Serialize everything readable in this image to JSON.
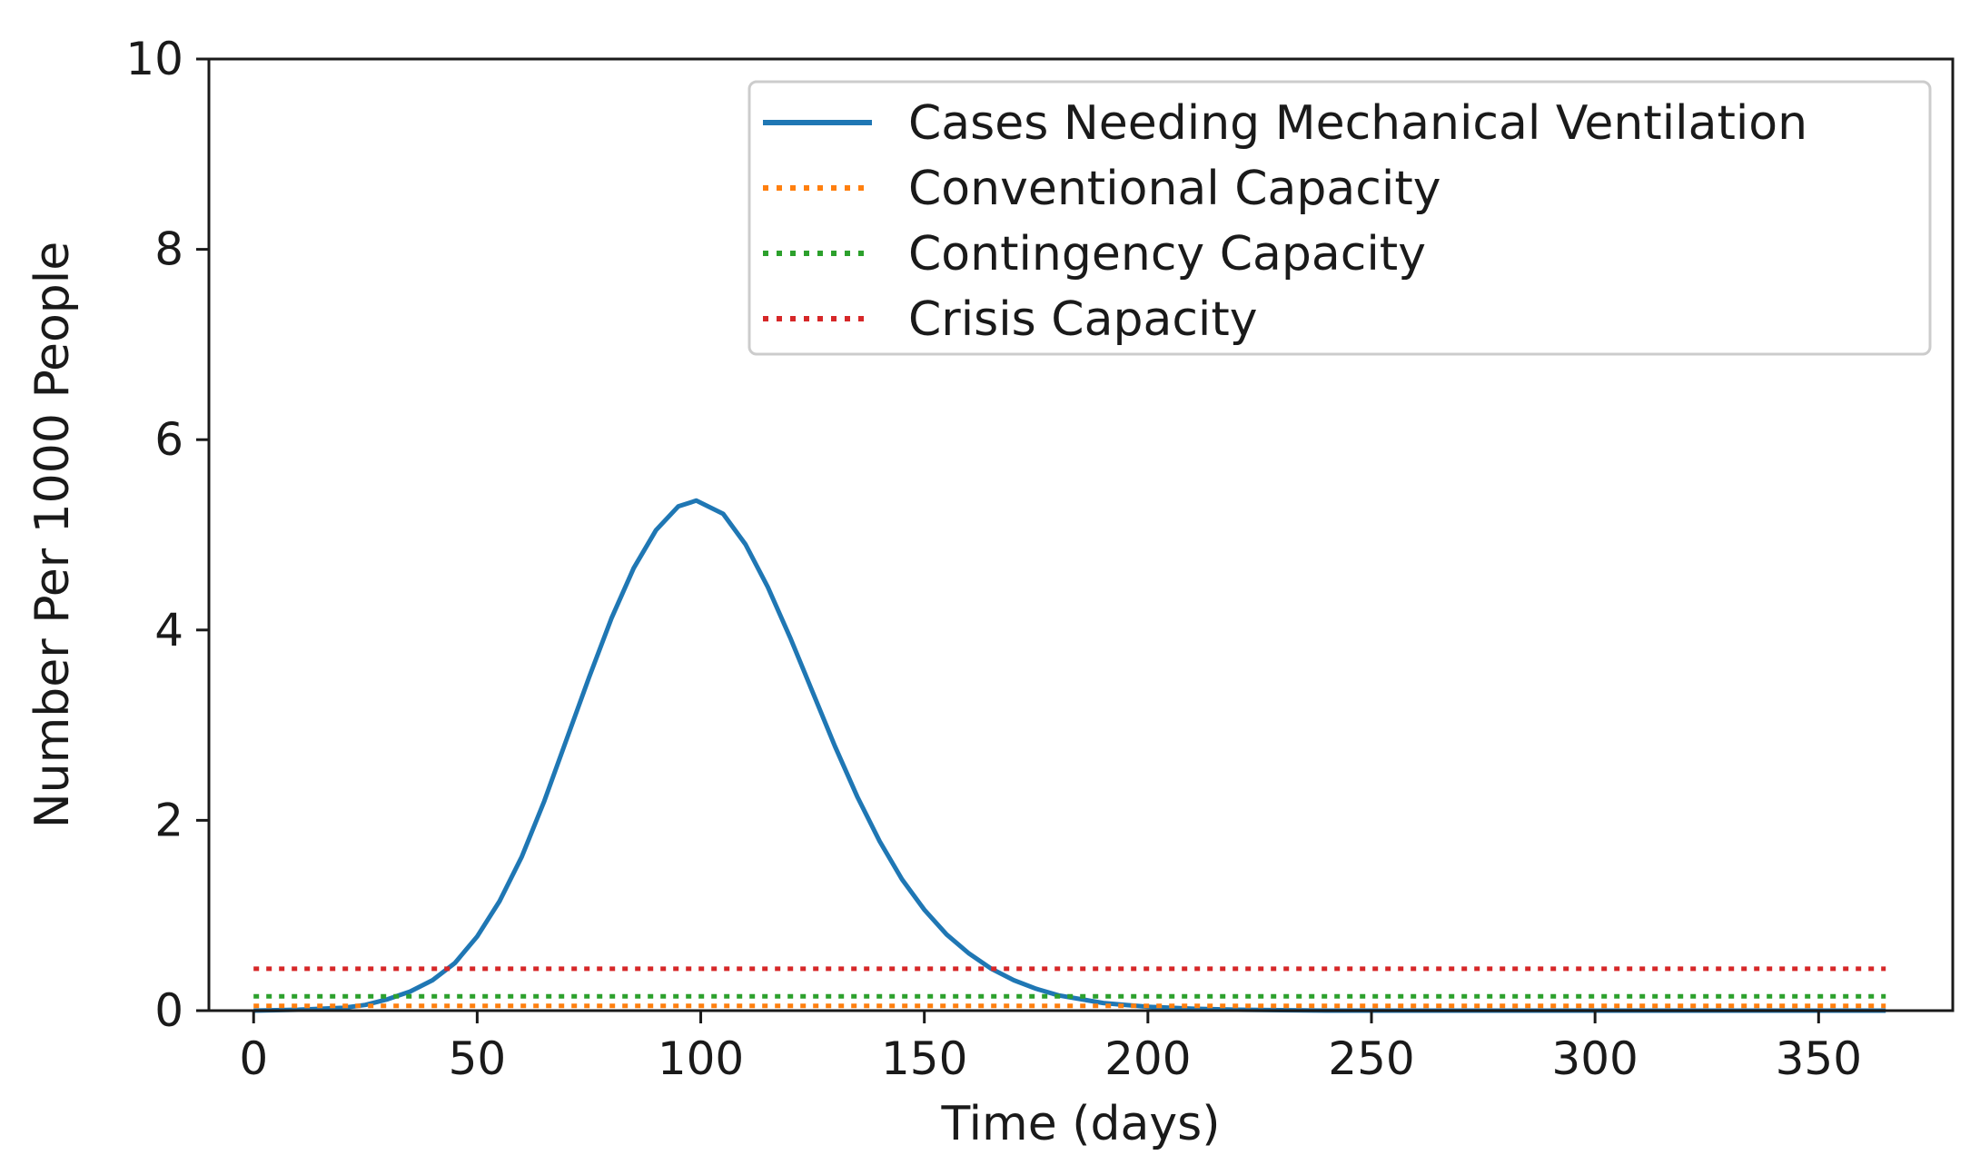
{
  "chart_data": {
    "type": "line",
    "title": "",
    "xlabel": "Time (days)",
    "ylabel": "Number Per 1000 People",
    "xlim": [
      -10,
      380
    ],
    "ylim": [
      0,
      10
    ],
    "xticks": [
      0,
      50,
      100,
      150,
      200,
      250,
      300,
      350
    ],
    "xtick_labels": [
      "0",
      "50",
      "100",
      "150",
      "200",
      "250",
      "300",
      "350"
    ],
    "yticks": [
      0,
      2,
      4,
      6,
      8,
      10
    ],
    "ytick_labels": [
      "0",
      "2",
      "4",
      "6",
      "8",
      "10"
    ],
    "grid": false,
    "legend_position": "top-right",
    "series": [
      {
        "name": "Cases Needing Mechanical Ventilation",
        "style": "solid",
        "color": "#1f77b4",
        "x": [
          0,
          10,
          20,
          25,
          30,
          35,
          40,
          45,
          50,
          55,
          60,
          65,
          70,
          75,
          80,
          85,
          90,
          95,
          99,
          105,
          110,
          115,
          120,
          125,
          130,
          135,
          140,
          145,
          150,
          155,
          160,
          165,
          170,
          175,
          180,
          185,
          190,
          195,
          200,
          210,
          220,
          240,
          260,
          300,
          365
        ],
        "y": [
          0.0,
          0.01,
          0.03,
          0.06,
          0.12,
          0.2,
          0.32,
          0.5,
          0.78,
          1.15,
          1.62,
          2.2,
          2.85,
          3.5,
          4.12,
          4.65,
          5.05,
          5.3,
          5.36,
          5.22,
          4.9,
          4.45,
          3.92,
          3.35,
          2.78,
          2.25,
          1.78,
          1.38,
          1.06,
          0.8,
          0.6,
          0.44,
          0.32,
          0.23,
          0.16,
          0.12,
          0.08,
          0.06,
          0.04,
          0.02,
          0.01,
          0.0,
          0.0,
          0.0,
          0.0
        ]
      },
      {
        "name": "Conventional Capacity",
        "style": "dotted",
        "color": "#ff7f0e",
        "x": [
          0,
          365
        ],
        "y": [
          0.05,
          0.05
        ]
      },
      {
        "name": "Contingency Capacity",
        "style": "dotted",
        "color": "#2ca02c",
        "x": [
          0,
          365
        ],
        "y": [
          0.15,
          0.15
        ]
      },
      {
        "name": "Crisis Capacity",
        "style": "dotted",
        "color": "#d62728",
        "x": [
          0,
          365
        ],
        "y": [
          0.44,
          0.44
        ]
      }
    ]
  }
}
